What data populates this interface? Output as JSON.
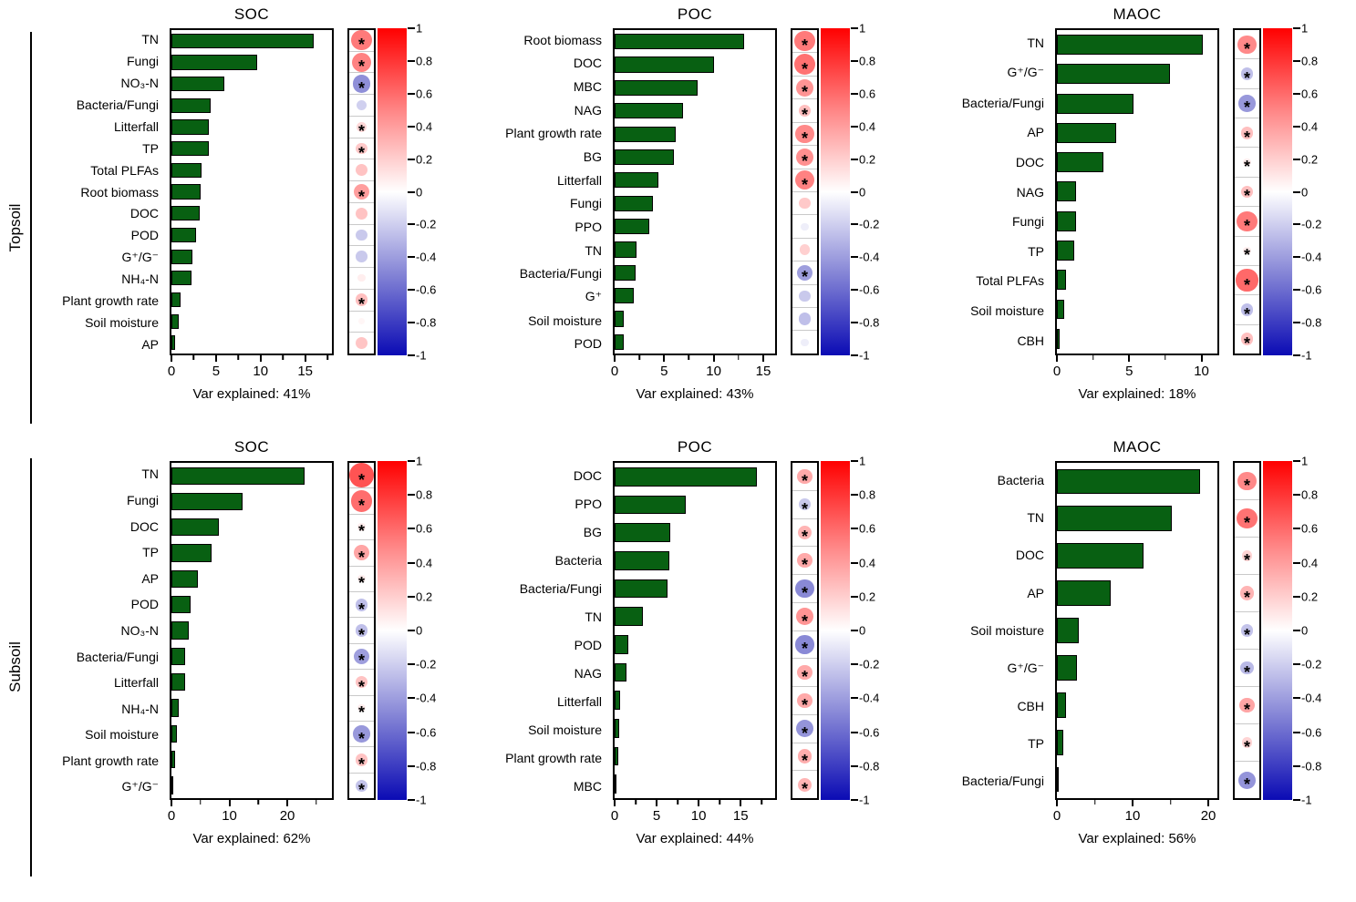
{
  "row_bands": [
    {
      "label": "Topsoil"
    },
    {
      "label": "Subsoil"
    }
  ],
  "colors": {
    "bar_fill": "#086012",
    "bar_border": "#000000",
    "colorbar_positive_max": "#ff0000",
    "colorbar_zero": "#ffffff",
    "colorbar_negative_max": "#0b0bb4",
    "significance_star": "#000000"
  },
  "colorbar": {
    "ticks": [
      "1",
      "0.8",
      "0.6",
      "0.4",
      "0.2",
      "0",
      "-0.2",
      "-0.4",
      "-0.6",
      "-0.8",
      "-1"
    ],
    "range": [
      1,
      -1
    ]
  },
  "chart_data": [
    {
      "type": "bar",
      "row": "Topsoil",
      "title": "SOC",
      "var_explained": "Var explained: 41%",
      "xlim": [
        0,
        18
      ],
      "xticks": [
        0,
        5,
        10,
        15
      ],
      "xticks_minor": [
        2.5,
        7.5,
        12.5,
        17.5
      ],
      "categories": [
        "TN",
        "Fungi",
        "NO₃-N",
        "Bacteria/Fungi",
        "Litterfall",
        "TP",
        "Total PLFAs",
        "Root biomass",
        "DOC",
        "POD",
        "G⁺/G⁻",
        "NH₄-N",
        "Plant growth rate",
        "Soil moisture",
        "AP"
      ],
      "values": [
        16.0,
        9.6,
        5.9,
        4.4,
        4.2,
        4.2,
        3.4,
        3.3,
        3.2,
        2.8,
        2.4,
        2.2,
        1.0,
        0.8,
        0.4
      ],
      "correlations": [
        {
          "r": 0.62,
          "sig": true
        },
        {
          "r": 0.58,
          "sig": true
        },
        {
          "r": -0.52,
          "sig": true
        },
        {
          "r": -0.22,
          "sig": false
        },
        {
          "r": 0.18,
          "sig": true
        },
        {
          "r": 0.25,
          "sig": true
        },
        {
          "r": 0.28,
          "sig": false
        },
        {
          "r": 0.45,
          "sig": true
        },
        {
          "r": 0.28,
          "sig": false
        },
        {
          "r": -0.25,
          "sig": false
        },
        {
          "r": -0.25,
          "sig": false
        },
        {
          "r": 0.08,
          "sig": false
        },
        {
          "r": 0.3,
          "sig": true
        },
        {
          "r": 0.04,
          "sig": false
        },
        {
          "r": 0.27,
          "sig": false
        }
      ]
    },
    {
      "type": "bar",
      "row": "Topsoil",
      "title": "POC",
      "var_explained": "Var explained: 43%",
      "xlim": [
        0,
        16.2
      ],
      "xticks": [
        0,
        5,
        10,
        15
      ],
      "xticks_minor": [
        2.5,
        7.5,
        12.5
      ],
      "categories": [
        "Root biomass",
        "DOC",
        "MBC",
        "NAG",
        "Plant growth rate",
        "BG",
        "Litterfall",
        "Fungi",
        "PPO",
        "TN",
        "Bacteria/Fungi",
        "G⁺",
        "Soil moisture",
        "POD"
      ],
      "values": [
        13.1,
        10.0,
        8.4,
        6.9,
        6.2,
        6.0,
        4.4,
        3.9,
        3.5,
        2.2,
        2.1,
        1.9,
        0.9,
        0.9
      ],
      "correlations": [
        {
          "r": 0.62,
          "sig": true
        },
        {
          "r": 0.66,
          "sig": true
        },
        {
          "r": 0.5,
          "sig": true
        },
        {
          "r": 0.3,
          "sig": true
        },
        {
          "r": 0.55,
          "sig": true
        },
        {
          "r": 0.52,
          "sig": true
        },
        {
          "r": 0.58,
          "sig": true
        },
        {
          "r": 0.25,
          "sig": false
        },
        {
          "r": -0.08,
          "sig": false
        },
        {
          "r": 0.22,
          "sig": false
        },
        {
          "r": -0.45,
          "sig": true
        },
        {
          "r": -0.25,
          "sig": false
        },
        {
          "r": -0.3,
          "sig": false
        },
        {
          "r": -0.08,
          "sig": false
        }
      ]
    },
    {
      "type": "bar",
      "row": "Topsoil",
      "title": "MAOC",
      "var_explained": "Var explained: 18%",
      "xlim": [
        0,
        11.1
      ],
      "xticks": [
        0,
        5,
        10
      ],
      "xticks_minor": [
        2.5,
        7.5
      ],
      "categories": [
        "TN",
        "G⁺/G⁻",
        "Bacteria/Fungi",
        "AP",
        "DOC",
        "NAG",
        "Fungi",
        "TP",
        "Total PLFAs",
        "Soil moisture",
        "CBH"
      ],
      "values": [
        10.1,
        7.8,
        5.3,
        4.1,
        3.2,
        1.3,
        1.3,
        1.2,
        0.6,
        0.5,
        0.2
      ],
      "correlations": [
        {
          "r": 0.55,
          "sig": true
        },
        {
          "r": -0.3,
          "sig": true
        },
        {
          "r": -0.48,
          "sig": true
        },
        {
          "r": 0.3,
          "sig": true
        },
        {
          "r": 0.08,
          "sig": true
        },
        {
          "r": 0.3,
          "sig": true
        },
        {
          "r": 0.62,
          "sig": true
        },
        {
          "r": 0.08,
          "sig": true
        },
        {
          "r": 0.7,
          "sig": true
        },
        {
          "r": -0.3,
          "sig": true
        },
        {
          "r": 0.3,
          "sig": true
        }
      ]
    },
    {
      "type": "bar",
      "row": "Subsoil",
      "title": "SOC",
      "var_explained": "Var explained: 62%",
      "xlim": [
        0,
        27.7
      ],
      "xticks": [
        0,
        10,
        20
      ],
      "xticks_minor": [
        5,
        15,
        25
      ],
      "categories": [
        "TN",
        "Fungi",
        "DOC",
        "TP",
        "AP",
        "POD",
        "NO₃-N",
        "Bacteria/Fungi",
        "Litterfall",
        "NH₄-N",
        "Soil moisture",
        "Plant growth rate",
        "G⁺/G⁻"
      ],
      "values": [
        22.9,
        12.3,
        8.2,
        6.9,
        4.6,
        3.3,
        3.0,
        2.3,
        2.3,
        1.3,
        1.0,
        0.7,
        0.15
      ],
      "correlations": [
        {
          "r": 0.8,
          "sig": true
        },
        {
          "r": 0.68,
          "sig": true
        },
        {
          "r": 0.08,
          "sig": true
        },
        {
          "r": 0.42,
          "sig": true
        },
        {
          "r": 0.08,
          "sig": true
        },
        {
          "r": -0.3,
          "sig": true
        },
        {
          "r": -0.3,
          "sig": true
        },
        {
          "r": -0.45,
          "sig": true
        },
        {
          "r": 0.28,
          "sig": true
        },
        {
          "r": 0.08,
          "sig": true
        },
        {
          "r": -0.48,
          "sig": true
        },
        {
          "r": 0.28,
          "sig": true
        },
        {
          "r": -0.28,
          "sig": true
        }
      ]
    },
    {
      "type": "bar",
      "row": "Subsoil",
      "title": "POC",
      "var_explained": "Var explained: 44%",
      "xlim": [
        0,
        19.1
      ],
      "xticks": [
        0,
        5,
        10,
        15
      ],
      "xticks_minor": [
        2.5,
        7.5,
        12.5,
        17.5
      ],
      "categories": [
        "DOC",
        "PPO",
        "BG",
        "Bacteria",
        "Bacteria/Fungi",
        "TN",
        "POD",
        "NAG",
        "Litterfall",
        "Soil moisture",
        "Plant growth rate",
        "MBC"
      ],
      "values": [
        16.9,
        8.5,
        6.6,
        6.5,
        6.3,
        3.4,
        1.6,
        1.4,
        0.6,
        0.5,
        0.4,
        0.1
      ],
      "correlations": [
        {
          "r": 0.4,
          "sig": true
        },
        {
          "r": -0.25,
          "sig": true
        },
        {
          "r": 0.35,
          "sig": true
        },
        {
          "r": 0.4,
          "sig": true
        },
        {
          "r": -0.55,
          "sig": true
        },
        {
          "r": 0.5,
          "sig": true
        },
        {
          "r": -0.55,
          "sig": true
        },
        {
          "r": 0.4,
          "sig": true
        },
        {
          "r": 0.4,
          "sig": true
        },
        {
          "r": -0.5,
          "sig": true
        },
        {
          "r": 0.38,
          "sig": true
        },
        {
          "r": 0.35,
          "sig": true
        }
      ]
    },
    {
      "type": "bar",
      "row": "Subsoil",
      "title": "MAOC",
      "var_explained": "Var explained: 56%",
      "xlim": [
        0,
        21.2
      ],
      "xticks": [
        0,
        10,
        20
      ],
      "xticks_minor": [
        5,
        15
      ],
      "categories": [
        "Bacteria",
        "TN",
        "DOC",
        "AP",
        "Soil moisture",
        "G⁺/G⁻",
        "CBH",
        "TP",
        "Bacteria/Fungi"
      ],
      "values": [
        18.9,
        15.2,
        11.4,
        7.1,
        2.9,
        2.6,
        1.2,
        0.9,
        0.15
      ],
      "correlations": [
        {
          "r": 0.55,
          "sig": true
        },
        {
          "r": 0.65,
          "sig": true
        },
        {
          "r": 0.2,
          "sig": true
        },
        {
          "r": 0.35,
          "sig": true
        },
        {
          "r": -0.28,
          "sig": true
        },
        {
          "r": -0.32,
          "sig": true
        },
        {
          "r": 0.42,
          "sig": true
        },
        {
          "r": 0.2,
          "sig": true
        },
        {
          "r": -0.5,
          "sig": true
        }
      ]
    }
  ]
}
